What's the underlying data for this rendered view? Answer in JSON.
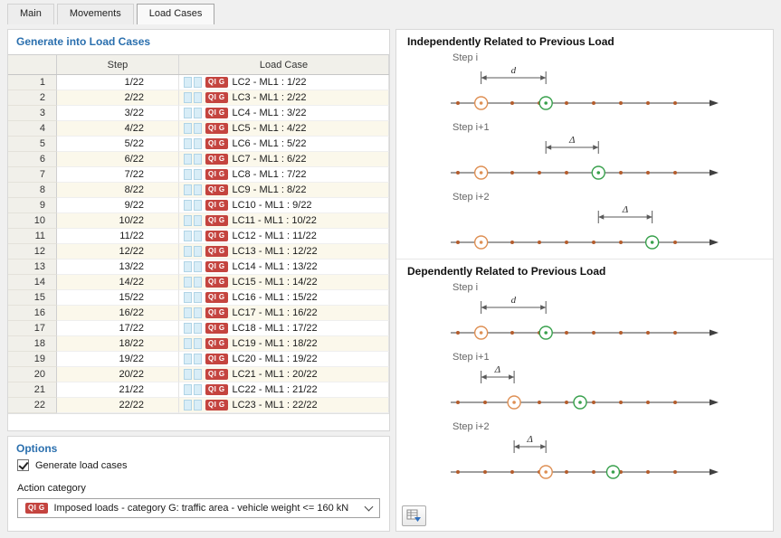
{
  "tabs": [
    {
      "label": "Main",
      "active": false
    },
    {
      "label": "Movements",
      "active": false
    },
    {
      "label": "Load Cases",
      "active": true
    }
  ],
  "left": {
    "section_title": "Generate into Load Cases",
    "table": {
      "columns": {
        "step": "Step",
        "load_case": "Load Case"
      },
      "badge": "QI G",
      "rows": [
        {
          "num": "1",
          "step": "1/22",
          "load_case": "LC2 - ML1 : 1/22"
        },
        {
          "num": "2",
          "step": "2/22",
          "load_case": "LC3 - ML1 : 2/22"
        },
        {
          "num": "3",
          "step": "3/22",
          "load_case": "LC4 - ML1 : 3/22"
        },
        {
          "num": "4",
          "step": "4/22",
          "load_case": "LC5 - ML1 : 4/22"
        },
        {
          "num": "5",
          "step": "5/22",
          "load_case": "LC6 - ML1 : 5/22"
        },
        {
          "num": "6",
          "step": "6/22",
          "load_case": "LC7 - ML1 : 6/22"
        },
        {
          "num": "7",
          "step": "7/22",
          "load_case": "LC8 - ML1 : 7/22"
        },
        {
          "num": "8",
          "step": "8/22",
          "load_case": "LC9 - ML1 : 8/22"
        },
        {
          "num": "9",
          "step": "9/22",
          "load_case": "LC10 - ML1 : 9/22"
        },
        {
          "num": "10",
          "step": "10/22",
          "load_case": "LC11 - ML1 : 10/22"
        },
        {
          "num": "11",
          "step": "11/22",
          "load_case": "LC12 - ML1 : 11/22"
        },
        {
          "num": "12",
          "step": "12/22",
          "load_case": "LC13 - ML1 : 12/22"
        },
        {
          "num": "13",
          "step": "13/22",
          "load_case": "LC14 - ML1 : 13/22"
        },
        {
          "num": "14",
          "step": "14/22",
          "load_case": "LC15 - ML1 : 14/22"
        },
        {
          "num": "15",
          "step": "15/22",
          "load_case": "LC16 - ML1 : 15/22"
        },
        {
          "num": "16",
          "step": "16/22",
          "load_case": "LC17 - ML1 : 16/22"
        },
        {
          "num": "17",
          "step": "17/22",
          "load_case": "LC18 - ML1 : 17/22"
        },
        {
          "num": "18",
          "step": "18/22",
          "load_case": "LC19 - ML1 : 18/22"
        },
        {
          "num": "19",
          "step": "19/22",
          "load_case": "LC20 - ML1 : 19/22"
        },
        {
          "num": "20",
          "step": "20/22",
          "load_case": "LC21 - ML1 : 20/22"
        },
        {
          "num": "21",
          "step": "21/22",
          "load_case": "LC22 - ML1 : 21/22"
        },
        {
          "num": "22",
          "step": "22/22",
          "load_case": "LC23 - ML1 : 22/22"
        }
      ]
    },
    "options": {
      "section_title": "Options",
      "generate_checkbox_label": "Generate load cases",
      "generate_checked": true,
      "action_category_label": "Action category",
      "action_badge": "QI G",
      "action_category_value": "Imposed loads - category G: traffic area - vehicle weight <= 160 kN"
    }
  },
  "right": {
    "sections": [
      {
        "title": "Independently Related to Previous Load",
        "diagrams": [
          {
            "label": "Step i",
            "orange": 0.095,
            "green": 0.36,
            "dim_from": 0.095,
            "dim_to": 0.36,
            "dim_label": "d"
          },
          {
            "label": "Step i+1",
            "orange": 0.095,
            "green": 0.575,
            "dim_from": 0.36,
            "dim_to": 0.575,
            "dim_label": "Δ"
          },
          {
            "label": "Step i+2",
            "orange": 0.095,
            "green": 0.795,
            "dim_from": 0.575,
            "dim_to": 0.795,
            "dim_label": "Δ"
          }
        ]
      },
      {
        "title": "Dependently Related to Previous Load",
        "diagrams": [
          {
            "label": "Step i",
            "orange": 0.095,
            "green": 0.36,
            "dim_from": 0.095,
            "dim_to": 0.36,
            "dim_label": "d"
          },
          {
            "label": "Step i+1",
            "orange": 0.23,
            "green": 0.5,
            "dim_from": 0.095,
            "dim_to": 0.23,
            "dim_label": "Δ"
          },
          {
            "label": "Step i+2",
            "orange": 0.36,
            "green": 0.635,
            "dim_from": 0.23,
            "dim_to": 0.36,
            "dim_label": "Δ"
          }
        ]
      }
    ],
    "colors": {
      "orange": "#de8f53",
      "green": "#38a04c",
      "dot": "#b35c2c",
      "axis": "#3f3f3f",
      "dim": "#5a5a5a"
    }
  }
}
